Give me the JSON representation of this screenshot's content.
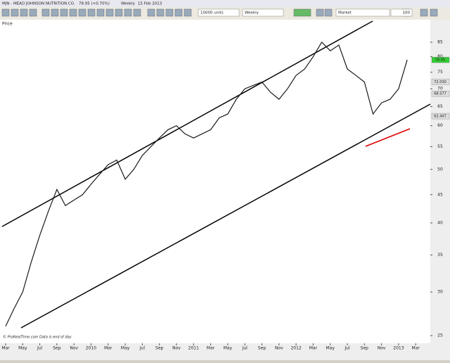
{
  "window": {
    "symbol": "MJN - MEAD JOHNSON NUTRITION CO.",
    "quote": "78.95 (+0.70%)",
    "period": "Weekly",
    "date": "15 Feb 2013"
  },
  "toolbar": {
    "size": "10000 units",
    "interval": "Weekly",
    "order": "Market",
    "zoom": "100"
  },
  "footer": "© ProRealTime.com  Data is end of day",
  "chart_data": {
    "type": "line",
    "title": "Price",
    "color": "#1a1a1a",
    "categories": [
      "Mar",
      null,
      "May",
      null,
      "Jul",
      null,
      "Sep",
      null,
      "Nov",
      null,
      "2010",
      null,
      "Mar",
      null,
      "May",
      null,
      "Jul",
      null,
      "Sep",
      null,
      "Nov",
      null,
      "2011",
      null,
      "Mar",
      null,
      "May",
      null,
      "Jul",
      null,
      "Sep",
      null,
      "Nov",
      null,
      "2012",
      null,
      "Mar",
      null,
      "May",
      null,
      "Jul",
      null,
      "Sep",
      null,
      "Nov",
      null,
      "2013",
      null,
      "Mar"
    ],
    "values": [
      26,
      28,
      30,
      34,
      38,
      42,
      46,
      43,
      44,
      45,
      47,
      49,
      51,
      52,
      48,
      50,
      53,
      55,
      57,
      59,
      60,
      58,
      57,
      58,
      59,
      62,
      63,
      67,
      70,
      71,
      72,
      69,
      67,
      70,
      74,
      76,
      80,
      85,
      82,
      84,
      76,
      74,
      72,
      63,
      66,
      67,
      70,
      78.95,
      null
    ],
    "log_scale": true,
    "ylim": [
      24.5,
      92
    ],
    "yticks": [
      25,
      30,
      35,
      40,
      45,
      50,
      55,
      60,
      65,
      70,
      75,
      80,
      85
    ],
    "markers": [
      78.95,
      {
        "value": 72.03,
        "label": "72.030"
      },
      {
        "value": 68.577,
        "label": "68.577"
      },
      {
        "value": 62.447,
        "label": "62.447"
      }
    ],
    "grid": false
  }
}
